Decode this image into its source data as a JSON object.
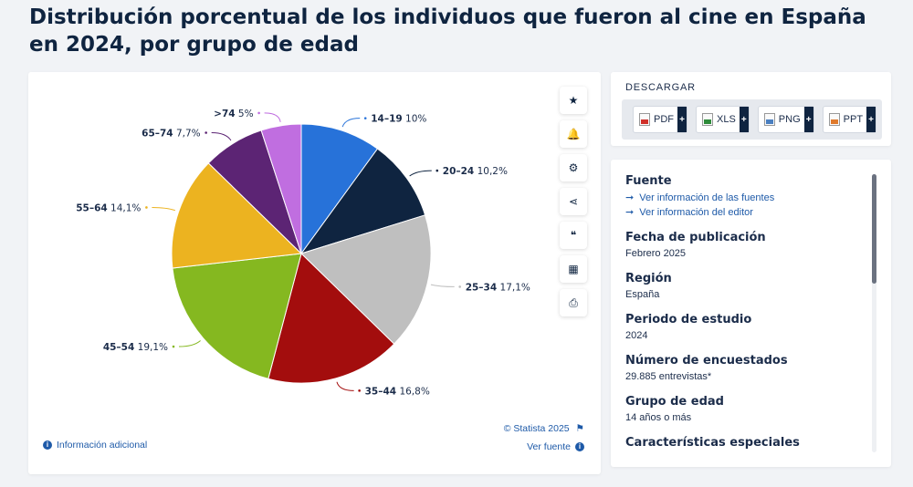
{
  "page": {
    "title": "Distribución porcentual de los individuos que fueron al cine en España en 2024, por grupo de edad"
  },
  "chart_data": {
    "type": "pie",
    "title": "Distribución porcentual de los individuos que fueron al cine en España en 2024, por grupo de edad",
    "categories": [
      "14–19",
      "20–24",
      "25–34",
      "35–44",
      "45–54",
      "55–64",
      "65–74",
      ">74"
    ],
    "values": [
      10,
      10.2,
      17.1,
      16.8,
      19.1,
      14.1,
      7.7,
      5
    ],
    "value_labels": [
      "10%",
      "10,2%",
      "17,1%",
      "16,8%",
      "19,1%",
      "14,1%",
      "7,7%",
      "5%"
    ],
    "colors": [
      "#2772d9",
      "#0f2440",
      "#bfbfbf",
      "#a30d0d",
      "#85b820",
      "#ecb320",
      "#5c2474",
      "#c06ee0"
    ],
    "legend": "labels-on-slices"
  },
  "toolbar": {
    "buttons": [
      {
        "name": "favorite-button",
        "glyph": "★"
      },
      {
        "name": "notification-button",
        "glyph": "🔔"
      },
      {
        "name": "settings-button",
        "glyph": "⚙"
      },
      {
        "name": "share-button",
        "glyph": "⋖"
      },
      {
        "name": "cite-button",
        "glyph": "❝"
      },
      {
        "name": "language-button",
        "glyph": "▦"
      },
      {
        "name": "print-button",
        "glyph": "⎙"
      }
    ]
  },
  "chart_footer": {
    "info_link": "Información adicional",
    "copyright": "© Statista 2025",
    "source_link": "Ver fuente"
  },
  "download": {
    "title": "DESCARGAR",
    "formats": [
      {
        "label": "PDF",
        "icon": "pdf"
      },
      {
        "label": "XLS",
        "icon": "xls"
      },
      {
        "label": "PNG",
        "icon": "png"
      },
      {
        "label": "PPT",
        "icon": "ppt"
      }
    ],
    "plus": "+"
  },
  "details": {
    "source_heading": "Fuente",
    "source_link_1": "Ver información de las fuentes",
    "source_link_2": "Ver información del editor",
    "pub_date_heading": "Fecha de publicación",
    "pub_date_value": "Febrero 2025",
    "region_heading": "Región",
    "region_value": "España",
    "period_heading": "Periodo de estudio",
    "period_value": "2024",
    "respondents_heading": "Número de encuestados",
    "respondents_value": "29.885 entrevistas*",
    "age_group_heading": "Grupo de edad",
    "age_group_value": "14 años o más",
    "special_heading": "Características especiales"
  }
}
